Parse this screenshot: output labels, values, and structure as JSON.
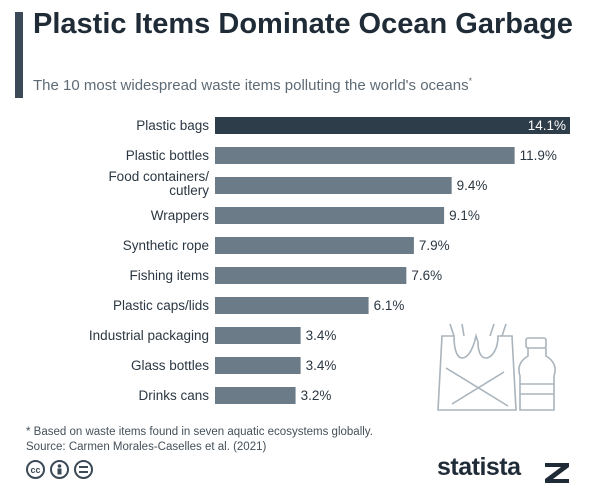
{
  "header": {
    "title": "Plastic Items Dominate Ocean Garbage",
    "subtitle": "The 10 most widespread waste items polluting the world's oceans",
    "subtitle_marker": "*"
  },
  "chart_data": {
    "type": "bar",
    "orientation": "horizontal",
    "categories": [
      "Plastic bags",
      "Plastic bottles",
      "Food containers/ cutlery",
      "Wrappers",
      "Synthetic rope",
      "Fishing items",
      "Plastic caps/lids",
      "Industrial packaging",
      "Glass bottles",
      "Drinks cans"
    ],
    "values": [
      14.1,
      11.9,
      9.4,
      9.1,
      7.9,
      7.6,
      6.1,
      3.4,
      3.4,
      3.2
    ],
    "value_labels": [
      "14.1%",
      "11.9%",
      "9.4%",
      "9.1%",
      "7.9%",
      "7.6%",
      "6.1%",
      "3.4%",
      "3.4%",
      "3.2%"
    ],
    "xlim": [
      0,
      14.1
    ],
    "highlight_color": "#2e3d4a",
    "bar_color": "#6b7b87",
    "grid": false,
    "legend": "none"
  },
  "footer": {
    "note": "* Based on waste items found in seven aquatic ecosystems globally.",
    "source": "Source: Carmen Morales-Caselles et al. (2021)",
    "brand": "statista",
    "license_icons": [
      "cc-icon",
      "by-icon",
      "nd-icon"
    ]
  }
}
